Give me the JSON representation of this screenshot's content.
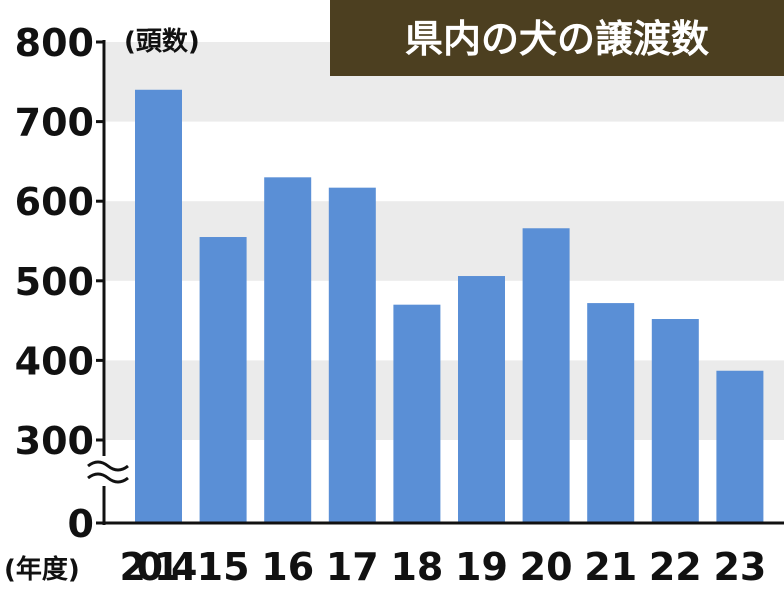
{
  "chart_data": {
    "type": "bar",
    "title": "県内の犬の譲渡数",
    "ylabel": "(頭数)",
    "xlabel": "(年度)",
    "categories": [
      "2014",
      "15",
      "16",
      "17",
      "18",
      "19",
      "20",
      "21",
      "22",
      "23"
    ],
    "values": [
      740,
      555,
      630,
      617,
      470,
      506,
      566,
      472,
      452,
      387
    ],
    "yticks": [
      "800",
      "700",
      "600",
      "500",
      "400",
      "300",
      "0"
    ],
    "ylim": [
      0,
      800
    ],
    "axis_break": "between 0 and 300",
    "grid": "alternating horizontal bands",
    "colors": {
      "bar": "#5a8fd6",
      "band": "#ebebeb",
      "title_bg": "#4c3f20",
      "title_text": "#ffffff"
    }
  }
}
